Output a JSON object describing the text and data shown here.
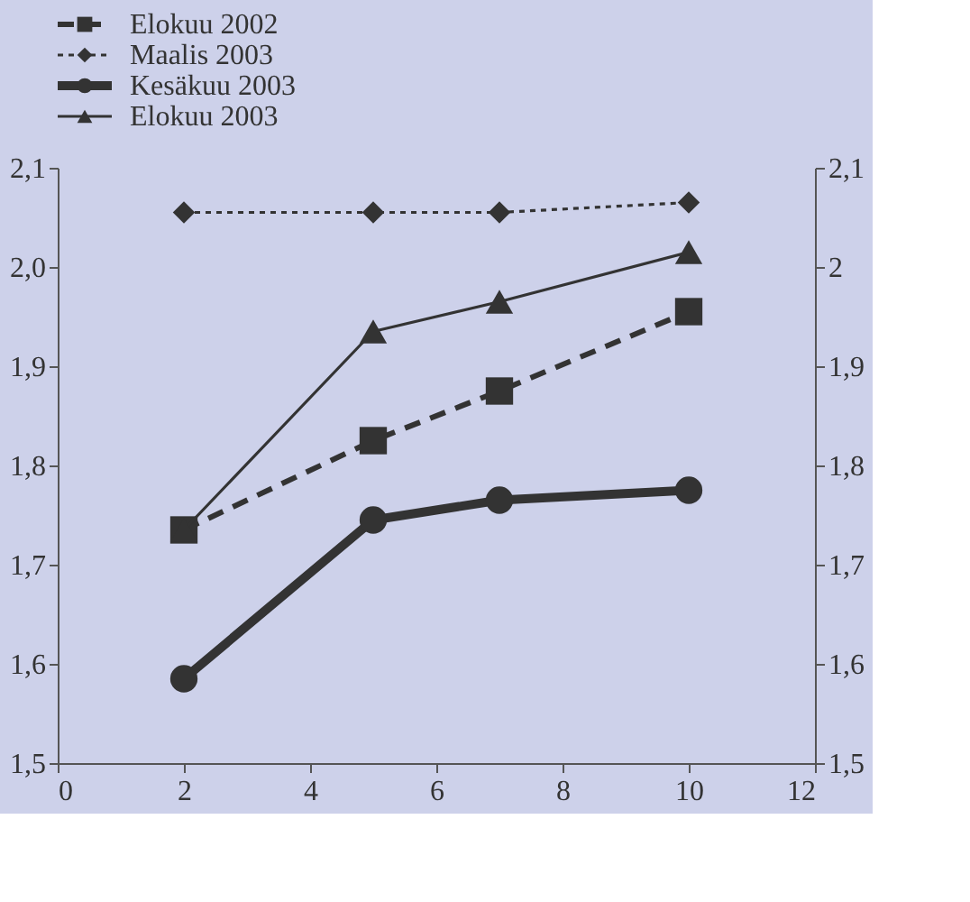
{
  "chart_data": {
    "type": "line",
    "x": [
      2,
      5,
      7,
      10
    ],
    "series": [
      {
        "name": "Elokuu 2002",
        "color": "#333333",
        "values": [
          1.735,
          1.825,
          1.875,
          1.955
        ],
        "marker": "square",
        "line_style": "dashed"
      },
      {
        "name": "Maalis 2003",
        "color": "#333333",
        "values": [
          2.055,
          2.055,
          2.055,
          2.065
        ],
        "marker": "diamond",
        "line_style": "dotted"
      },
      {
        "name": "Kesäkuu 2003",
        "color": "#333333",
        "values": [
          1.585,
          1.745,
          1.765,
          1.775
        ],
        "marker": "circle",
        "line_style": "solid"
      },
      {
        "name": "Elokuu 2003",
        "color": "#333333",
        "values": [
          1.735,
          1.935,
          1.965,
          2.015
        ],
        "marker": "triangle",
        "line_style": "solid"
      }
    ],
    "xlim": [
      0,
      12
    ],
    "xticks": [
      0,
      2,
      4,
      6,
      8,
      10,
      12
    ],
    "ylim": [
      1.5,
      2.1
    ],
    "yticks": [
      {
        "value": 1.5,
        "label": "1,5"
      },
      {
        "value": 1.6,
        "label": "1,6"
      },
      {
        "value": 1.7,
        "label": "1,7"
      },
      {
        "value": 1.8,
        "label": "1,8"
      },
      {
        "value": 1.9,
        "label": "1,9"
      },
      {
        "value": 2.0,
        "label": "2,0"
      },
      {
        "value": 2.1,
        "label": "2,1"
      }
    ],
    "y2lim": [
      1.5,
      2.1
    ],
    "y2ticks": [
      {
        "value": 1.5,
        "label": "1,5"
      },
      {
        "value": 1.6,
        "label": "1,6"
      },
      {
        "value": 1.7,
        "label": "1,7"
      },
      {
        "value": 1.8,
        "label": "1,8"
      },
      {
        "value": 1.9,
        "label": "1,9"
      },
      {
        "value": 2,
        "label": "2"
      },
      {
        "value": 2.1,
        "label": "2,1"
      }
    ],
    "grid": false,
    "legend": "top left"
  }
}
